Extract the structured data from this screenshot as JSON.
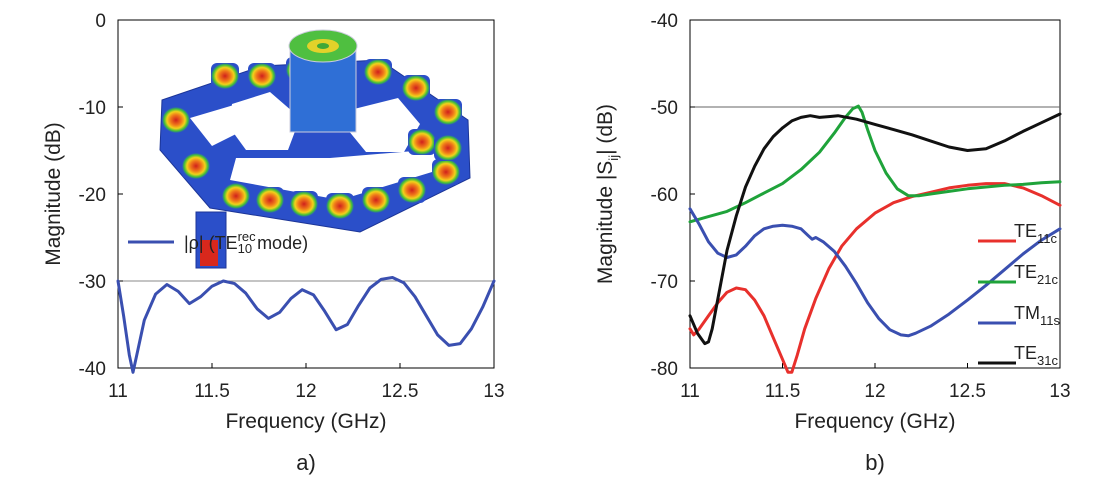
{
  "chart_data": [
    {
      "type": "line",
      "panel_label": "a)",
      "xlabel": "Frequency (GHz)",
      "ylabel": "Magnitude (dB)",
      "xlim": [
        11,
        13
      ],
      "ylim": [
        -40,
        0
      ],
      "xticks": [
        "11",
        "11.5",
        "12",
        "12.5",
        "13"
      ],
      "yticks": [
        "0",
        "-10",
        "-20",
        "-30",
        "-40"
      ],
      "legend": {
        "placement": "center-left",
        "entry_prefix": "|ρ| (TE",
        "entry_sup": "rec",
        "entry_sub": "10",
        "entry_suffix": " mode)"
      },
      "inset": "3D field distribution of the cavity structure",
      "series": [
        {
          "color": "#3a4fb0",
          "x": [
            11.0,
            11.03,
            11.06,
            11.08,
            11.1,
            11.14,
            11.2,
            11.26,
            11.32,
            11.38,
            11.44,
            11.5,
            11.56,
            11.62,
            11.68,
            11.74,
            11.8,
            11.86,
            11.92,
            11.98,
            12.04,
            12.1,
            12.16,
            12.22,
            12.28,
            12.34,
            12.4,
            12.46,
            12.52,
            12.58,
            12.64,
            12.7,
            12.76,
            12.82,
            12.88,
            12.94,
            13.0
          ],
          "y": [
            -30,
            -34,
            -38.5,
            -40.5,
            -38.5,
            -34.5,
            -31.5,
            -30.4,
            -31.2,
            -32.6,
            -31.8,
            -30.6,
            -30.0,
            -30.3,
            -31.4,
            -33.2,
            -34.3,
            -33.6,
            -32.0,
            -31.0,
            -31.6,
            -33.5,
            -35.6,
            -35.0,
            -32.8,
            -30.8,
            -29.8,
            -29.6,
            -30.2,
            -31.8,
            -34.0,
            -36.2,
            -37.4,
            -37.2,
            -35.5,
            -33.0,
            -30.0
          ]
        }
      ]
    },
    {
      "type": "line",
      "panel_label": "b)",
      "xlabel": "Frequency (GHz)",
      "ylabel_prefix": "Magnitude |S",
      "ylabel_sub": "ij",
      "ylabel_suffix": "| (dB)",
      "xlim": [
        11,
        13
      ],
      "ylim": [
        -80,
        -40
      ],
      "xticks": [
        "11",
        "11.5",
        "12",
        "12.5",
        "13"
      ],
      "yticks": [
        "-40",
        "-50",
        "-60",
        "-70",
        "-80"
      ],
      "legend": {
        "placement": "bottom-right"
      },
      "series": [
        {
          "name_main": "TE",
          "name_sub": "11c",
          "color": "#e8302c",
          "x": [
            11.0,
            11.02,
            11.05,
            11.1,
            11.15,
            11.2,
            11.25,
            11.3,
            11.35,
            11.4,
            11.45,
            11.5,
            11.53,
            11.55,
            11.58,
            11.62,
            11.68,
            11.75,
            11.82,
            11.9,
            12.0,
            12.1,
            12.2,
            12.3,
            12.4,
            12.5,
            12.6,
            12.7,
            12.8,
            12.9,
            13.0
          ],
          "y": [
            -75.5,
            -76.2,
            -75.5,
            -74.0,
            -72.5,
            -71.3,
            -70.8,
            -71.0,
            -72.2,
            -74.0,
            -76.5,
            -79.0,
            -80.5,
            -80.5,
            -78.5,
            -75.5,
            -72.0,
            -68.6,
            -66.0,
            -64.0,
            -62.2,
            -61.0,
            -60.3,
            -59.8,
            -59.3,
            -59.0,
            -58.8,
            -58.8,
            -59.3,
            -60.2,
            -61.3
          ]
        },
        {
          "name_main": "TE",
          "name_sub": "21c",
          "color": "#1fa33a",
          "x": [
            11.0,
            11.1,
            11.2,
            11.3,
            11.4,
            11.5,
            11.6,
            11.7,
            11.78,
            11.84,
            11.88,
            11.91,
            11.93,
            11.96,
            12.0,
            12.06,
            12.12,
            12.18,
            12.24,
            12.3,
            12.4,
            12.5,
            12.6,
            12.7,
            12.8,
            12.9,
            13.0
          ],
          "y": [
            -63.2,
            -62.6,
            -62.0,
            -61.0,
            -59.9,
            -58.8,
            -57.2,
            -55.2,
            -53.0,
            -51.2,
            -50.2,
            -49.9,
            -50.6,
            -52.6,
            -55.0,
            -57.6,
            -59.4,
            -60.2,
            -60.2,
            -60.0,
            -59.7,
            -59.4,
            -59.2,
            -59.0,
            -58.9,
            -58.7,
            -58.6
          ]
        },
        {
          "name_main": "TM",
          "name_sub": "11s",
          "color": "#3a4fb0",
          "x": [
            11.0,
            11.05,
            11.1,
            11.15,
            11.2,
            11.25,
            11.3,
            11.35,
            11.4,
            11.45,
            11.5,
            11.55,
            11.6,
            11.64,
            11.66,
            11.68,
            11.72,
            11.78,
            11.84,
            11.9,
            11.96,
            12.02,
            12.08,
            12.14,
            12.18,
            12.22,
            12.3,
            12.4,
            12.5,
            12.6,
            12.7,
            12.8,
            12.9,
            13.0
          ],
          "y": [
            -61.7,
            -63.5,
            -65.5,
            -66.8,
            -67.3,
            -67.0,
            -66.0,
            -64.8,
            -64.0,
            -63.7,
            -63.6,
            -63.7,
            -64.0,
            -64.8,
            -65.2,
            -65.0,
            -65.5,
            -66.6,
            -68.3,
            -70.3,
            -72.5,
            -74.3,
            -75.6,
            -76.2,
            -76.3,
            -76.0,
            -75.2,
            -73.8,
            -72.2,
            -70.5,
            -68.7,
            -66.9,
            -65.3,
            -64.0
          ]
        },
        {
          "name_main": "TE",
          "name_sub": "31c",
          "color": "#111111",
          "x": [
            11.0,
            11.04,
            11.08,
            11.1,
            11.12,
            11.16,
            11.2,
            11.25,
            11.3,
            11.35,
            11.4,
            11.45,
            11.5,
            11.55,
            11.6,
            11.65,
            11.7,
            11.75,
            11.8,
            11.9,
            12.0,
            12.1,
            12.2,
            12.3,
            12.4,
            12.5,
            12.6,
            12.7,
            12.8,
            12.9,
            13.0
          ],
          "y": [
            -74.0,
            -76.0,
            -77.2,
            -77.0,
            -75.5,
            -71.0,
            -66.5,
            -62.5,
            -59.2,
            -56.8,
            -54.8,
            -53.4,
            -52.4,
            -51.6,
            -51.2,
            -51.0,
            -51.2,
            -51.1,
            -51.0,
            -51.4,
            -52.0,
            -52.6,
            -53.2,
            -53.9,
            -54.6,
            -55.0,
            -54.8,
            -53.9,
            -52.8,
            -51.8,
            -50.8
          ]
        }
      ]
    }
  ]
}
